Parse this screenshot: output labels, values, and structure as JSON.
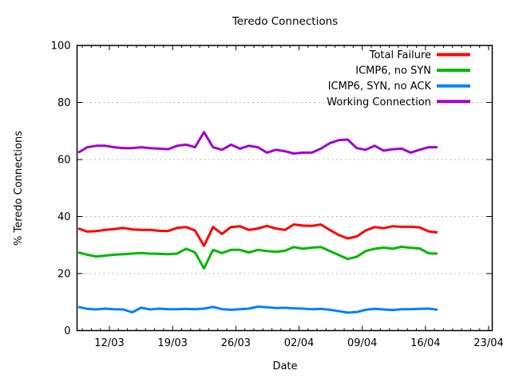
{
  "background": "#ffffff",
  "chart_data": {
    "type": "line",
    "title": "Teredo Connections",
    "xlabel": "Date",
    "ylabel": "% Teredo Connections",
    "ylim": [
      0,
      100
    ],
    "yticks": [
      0,
      20,
      40,
      60,
      80,
      100
    ],
    "ytick_labels": [
      "0",
      "20",
      "40",
      "60",
      "80",
      "100"
    ],
    "xtick_labels": [
      "12/03",
      "19/03",
      "26/03",
      "02/04",
      "09/04",
      "16/04",
      "23/04"
    ],
    "grid": "horizontal dotted gray lines at 20, 40, 60, 80",
    "grid_color": "#a8a8a8",
    "axis_color": "#000000",
    "legend_position": "top-right-inside, no box, right-aligned labels with line sample at right",
    "x_dates": [
      "08/03",
      "09/03",
      "10/03",
      "11/03",
      "12/03",
      "13/03",
      "14/03",
      "15/03",
      "16/03",
      "17/03",
      "18/03",
      "19/03",
      "20/03",
      "21/03",
      "22/03",
      "23/03",
      "24/03",
      "25/03",
      "26/03",
      "27/03",
      "28/03",
      "29/03",
      "30/03",
      "31/03",
      "01/04",
      "02/04",
      "03/04",
      "04/04",
      "05/04",
      "06/04",
      "07/04",
      "08/04",
      "09/04",
      "10/04",
      "11/04",
      "12/04",
      "13/04",
      "14/04",
      "15/04",
      "16/04",
      "17/04"
    ],
    "series": [
      {
        "name": "Total Failure",
        "color": "#ff0000",
        "values": [
          35.8,
          34.7,
          34.9,
          35.3,
          35.6,
          36.0,
          35.5,
          35.3,
          35.3,
          35.0,
          34.9,
          36.0,
          36.3,
          35.1,
          29.7,
          36.3,
          33.9,
          36.3,
          36.6,
          35.3,
          35.8,
          36.7,
          35.8,
          35.3,
          37.2,
          36.8,
          36.7,
          37.2,
          35.3,
          33.5,
          32.3,
          33.0,
          35.1,
          36.3,
          35.9,
          36.6,
          36.4,
          36.4,
          36.2,
          34.8,
          34.4
        ]
      },
      {
        "name": "ICMP6, no SYN",
        "color": "#00b800",
        "values": [
          27.4,
          26.6,
          26.0,
          26.3,
          26.6,
          26.8,
          27.0,
          27.2,
          27.0,
          26.9,
          26.8,
          27.0,
          28.7,
          27.4,
          21.8,
          28.3,
          27.2,
          28.3,
          28.3,
          27.4,
          28.3,
          27.9,
          27.6,
          28.0,
          29.3,
          28.7,
          29.1,
          29.3,
          27.9,
          26.5,
          25.1,
          25.9,
          27.9,
          28.7,
          29.1,
          28.7,
          29.4,
          29.0,
          28.8,
          27.1,
          27.0
        ]
      },
      {
        "name": "ICMP6, SYN, no ACK",
        "color": "#0080ff",
        "values": [
          8.3,
          7.6,
          7.4,
          7.7,
          7.5,
          7.4,
          6.4,
          8.0,
          7.4,
          7.7,
          7.5,
          7.5,
          7.6,
          7.5,
          7.7,
          8.3,
          7.5,
          7.3,
          7.5,
          7.7,
          8.4,
          8.2,
          7.9,
          8.0,
          7.8,
          7.7,
          7.5,
          7.6,
          7.3,
          6.8,
          6.3,
          6.5,
          7.3,
          7.6,
          7.4,
          7.2,
          7.5,
          7.5,
          7.6,
          7.7,
          7.3
        ]
      },
      {
        "name": "Working Connection",
        "color": "#a000d0",
        "values": [
          62.4,
          64.3,
          64.8,
          64.8,
          64.3,
          64.0,
          64.0,
          64.3,
          64.0,
          63.8,
          63.6,
          64.8,
          65.2,
          64.3,
          69.6,
          64.3,
          63.4,
          65.2,
          63.8,
          64.8,
          64.3,
          62.4,
          63.4,
          62.9,
          62.1,
          62.4,
          62.4,
          63.8,
          65.7,
          66.8,
          67.0,
          64.0,
          63.4,
          64.8,
          63.1,
          63.6,
          63.8,
          62.4,
          63.4,
          64.3,
          64.3
        ]
      }
    ]
  }
}
